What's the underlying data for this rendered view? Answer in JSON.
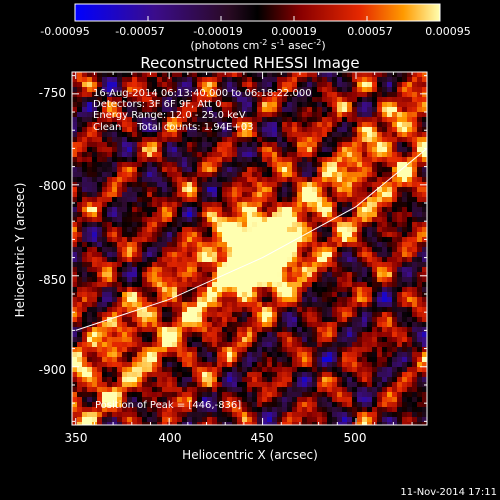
{
  "chart_data": {
    "type": "heatmap",
    "title": "Reconstructed RHESSI Image",
    "xlabel": "Heliocentric X (arcsec)",
    "ylabel": "Heliocentric Y (arcsec)",
    "xlim": [
      348,
      538
    ],
    "ylim": [
      -932,
      -738
    ],
    "x_ticks": [
      350,
      400,
      450,
      500
    ],
    "y_ticks": [
      -750,
      -800,
      -850,
      -900
    ],
    "colorbar": {
      "min": -0.00095,
      "max": 0.00095,
      "ticks": [
        "-0.00095",
        "-0.00057",
        "-0.00019",
        "0.00019",
        "0.00057",
        "0.00095"
      ],
      "label_units": "(photons cm",
      "label_units_exp1": "-2",
      "label_units_mid": " s",
      "label_units_exp2": "-1",
      "label_units_tail": " asec",
      "label_units_exp3": "-2",
      "label_units_close": ")"
    },
    "info_lines": [
      "16-Aug-2014 06:13:40.000 to 06:18:22.000",
      "Detectors: 3F 6F 9F, Att 0",
      "Energy Range: 12.0 - 25.0 keV",
      "Clean     Total counts: 1.94E+03"
    ],
    "peak_label": "Position of Peak = [446,-836]",
    "peak": [
      446,
      -836
    ],
    "limb_points": [
      [
        350,
        -880
      ],
      [
        400,
        -863
      ],
      [
        450,
        -840
      ],
      [
        500,
        -812
      ],
      [
        538,
        -780
      ]
    ]
  },
  "footer_timestamp": "11-Nov-2014 17:11"
}
